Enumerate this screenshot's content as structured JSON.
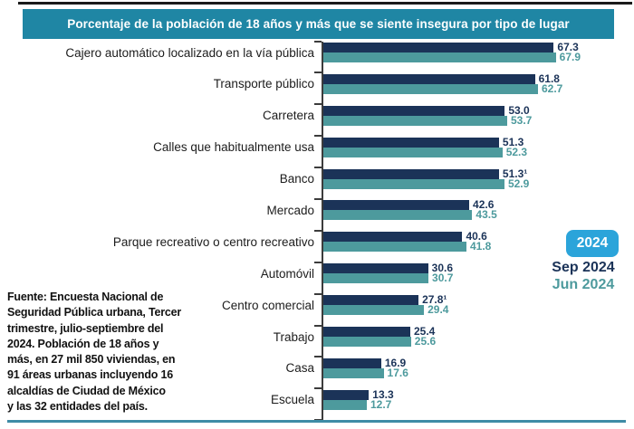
{
  "header": {
    "title": "Porcentaje de la población de 18 años y más que se siente insegura por tipo de lugar"
  },
  "chart_data": {
    "type": "bar",
    "orientation": "horizontal",
    "unit": "percent",
    "xlim": [
      0,
      72
    ],
    "grid": false,
    "legend_position": "right",
    "categories": [
      "Cajero automático localizado en la vía pública",
      "Transporte público",
      "Carretera",
      "Calles que habitualmente usa",
      "Banco",
      "Mercado",
      "Parque recreativo o centro recreativo",
      "Automóvil",
      "Centro comercial",
      "Trabajo",
      "Casa",
      "Escuela"
    ],
    "series": [
      {
        "name": "Sep 2024",
        "color": "#1B3358",
        "values": [
          67.3,
          61.8,
          53.0,
          51.3,
          51.3,
          42.6,
          40.6,
          30.6,
          27.8,
          25.4,
          16.9,
          13.3
        ],
        "value_labels": [
          "67.3",
          "61.8",
          "53.0",
          "51.3",
          "51.3¹",
          "42.6",
          "40.6",
          "30.6",
          "27.8¹",
          "25.4",
          "16.9",
          "13.3"
        ]
      },
      {
        "name": "Jun 2024",
        "color": "#4D9A9D",
        "values": [
          67.9,
          62.7,
          53.7,
          52.3,
          52.9,
          43.5,
          41.8,
          30.7,
          29.4,
          25.6,
          17.6,
          12.7
        ],
        "value_labels": [
          "67.9",
          "62.7",
          "53.7",
          "52.3",
          "52.9",
          "43.5",
          "41.8",
          "30.7",
          "29.4",
          "25.6",
          "17.6",
          "12.7"
        ]
      }
    ]
  },
  "legend": {
    "year_badge": "2024",
    "items": [
      {
        "label": "Sep 2024",
        "color": "#1B3358"
      },
      {
        "label": "Jun 2024",
        "color": "#4D9A9D"
      }
    ]
  },
  "source_note_lines": [
    "Fuente: Encuesta Nacional de",
    "Seguridad Pública urbana, Tercer",
    "trimestre, julio-septiembre del",
    "2024. Población de 18 años y",
    "más, en 27 mil 850 viviendas, en",
    "91 áreas urbanas incluyendo 16",
    "alcaldías de Ciudad de México",
    "y las 32  entidades del país."
  ],
  "colors": {
    "header_bg": "#1F86A4",
    "badge_bg": "#2BA4DA",
    "top_rule": "#1A1A1A",
    "bottom_rule": "#3F8CA6",
    "axis": "#3C3C3C"
  }
}
